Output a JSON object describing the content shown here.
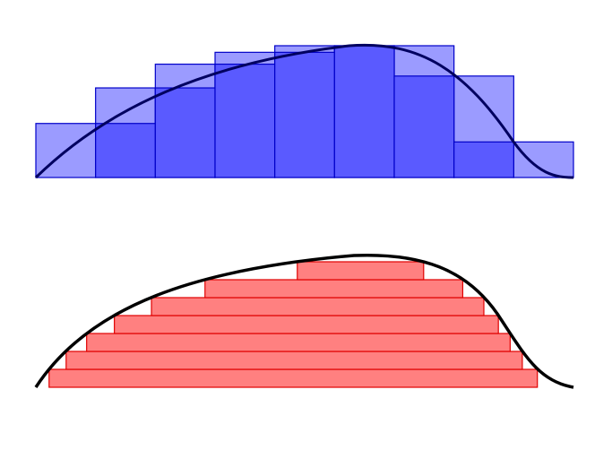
{
  "colors": {
    "riemann_upper_fill": "#9b9bff",
    "riemann_lower_fill": "#5a5aff",
    "riemann_stroke": "#0000c8",
    "riemann_curve": "#000060",
    "lebesgue_fill": "#ff8080",
    "lebesgue_stroke": "#e00000",
    "lebesgue_curve": "#000000"
  },
  "riemann": {
    "upper_sums": [
      0.41,
      0.68,
      0.86,
      0.95,
      1.0,
      1.0,
      1.0,
      0.77,
      0.27
    ],
    "lower_sums": [
      0.0,
      0.41,
      0.68,
      0.86,
      0.95,
      1.0,
      0.77,
      0.27,
      0.0
    ]
  },
  "lebesgue": {
    "levels": 7
  }
}
